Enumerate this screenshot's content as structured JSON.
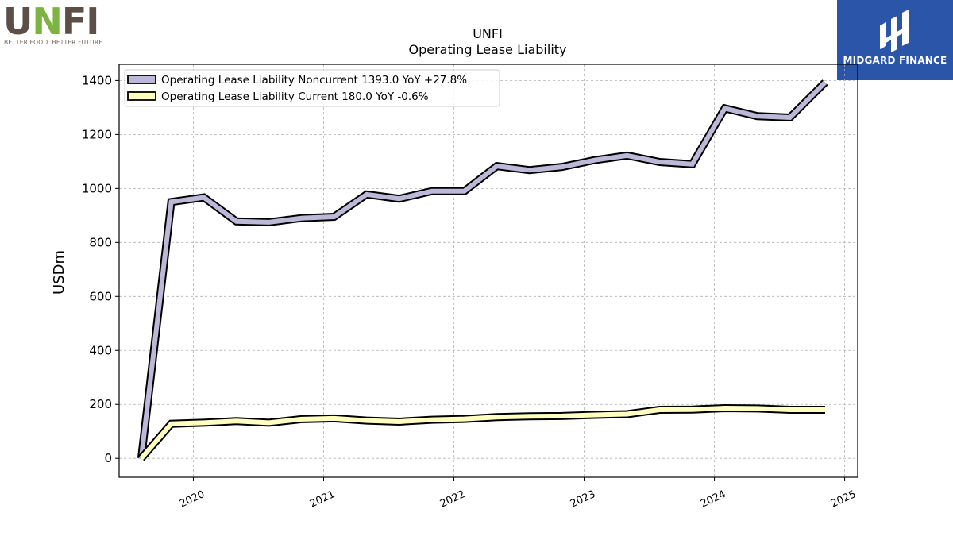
{
  "logos": {
    "left_name": "UNFI",
    "left_tagline": "BETTER FOOD. BETTER FUTURE.",
    "right_name": "MIDGARD FINANCE"
  },
  "chart_data": {
    "type": "line",
    "title": "UNFI",
    "subtitle": "Operating Lease Liability",
    "xlabel": "",
    "ylabel": "USDm",
    "ylim": [
      -70,
      1460
    ],
    "xlim": [
      2019.43,
      2025.1
    ],
    "x_ticks": [
      2020,
      2021,
      2022,
      2023,
      2024,
      2025
    ],
    "y_ticks": [
      0,
      200,
      400,
      600,
      800,
      1000,
      1200,
      1400
    ],
    "grid": true,
    "legend_position": "upper-left",
    "series": [
      {
        "name": "Operating Lease Liability Noncurrent  1393.0 YoY +27.8%",
        "fill": "#bcb8d8",
        "x": [
          2019.6,
          2019.83,
          2020.08,
          2020.33,
          2020.58,
          2020.83,
          2021.08,
          2021.33,
          2021.58,
          2021.83,
          2022.08,
          2022.33,
          2022.58,
          2022.83,
          2023.08,
          2023.33,
          2023.58,
          2023.83,
          2024.08,
          2024.33,
          2024.58,
          2024.85
        ],
        "values": [
          0,
          950,
          967,
          878,
          875,
          890,
          895,
          978,
          962,
          990,
          990,
          1083,
          1068,
          1080,
          1105,
          1122,
          1098,
          1090,
          1297,
          1268,
          1263,
          1393
        ]
      },
      {
        "name": "Operating Lease Liability Current  180.0 YoY -0.6%",
        "fill": "#ffffc0",
        "x": [
          2019.6,
          2019.83,
          2020.08,
          2020.33,
          2020.58,
          2020.83,
          2021.08,
          2021.33,
          2021.58,
          2021.83,
          2022.08,
          2022.33,
          2022.58,
          2022.83,
          2023.08,
          2023.33,
          2023.58,
          2023.83,
          2024.08,
          2024.33,
          2024.58,
          2024.85
        ],
        "values": [
          0,
          128,
          132,
          138,
          132,
          145,
          148,
          140,
          136,
          143,
          146,
          153,
          156,
          157,
          161,
          164,
          180,
          181,
          186,
          185,
          180,
          180
        ]
      }
    ]
  }
}
